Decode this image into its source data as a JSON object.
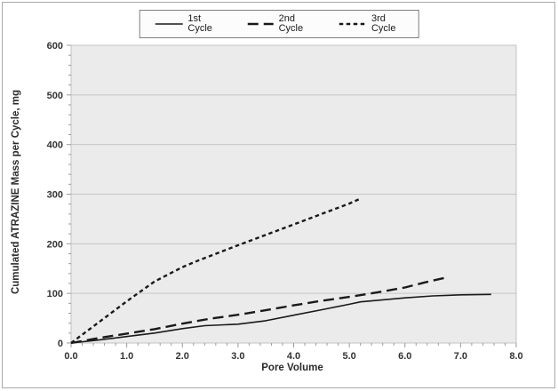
{
  "chart_data": {
    "type": "line",
    "title": "",
    "xlabel": "Pore Volume",
    "ylabel": "Cumulated ATRAZINE Mass per Cycle, mg",
    "xlim": [
      0.0,
      8.0
    ],
    "ylim": [
      0,
      600
    ],
    "x_tick_labels": [
      "0.0",
      "1.0",
      "2.0",
      "3.0",
      "4.0",
      "5.0",
      "6.0",
      "7.0",
      "8.0"
    ],
    "y_tick_labels": [
      "0",
      "100",
      "200",
      "300",
      "400",
      "500",
      "600"
    ],
    "x_major_step": 1.0,
    "x_minor_step": 0.2,
    "y_major_step": 100,
    "y_minor_step": 20,
    "grid": "horizontal-major-only",
    "legend_position": "top-center",
    "colors": {
      "line": "#1a1a1a",
      "plot_background": "#ebebeb",
      "gridline": "#c6c6c6",
      "plot_border": "#c3c3c3",
      "tick": "#9a9a9a",
      "tick_text": "#333333"
    },
    "series": [
      {
        "name": "1st Cycle",
        "style": "solid",
        "points": [
          [
            0,
            0
          ],
          [
            0.5,
            6
          ],
          [
            1.0,
            13
          ],
          [
            1.5,
            20
          ],
          [
            2.0,
            29
          ],
          [
            2.4,
            35
          ],
          [
            3.0,
            38
          ],
          [
            3.5,
            45
          ],
          [
            4.0,
            56
          ],
          [
            4.5,
            67
          ],
          [
            5.0,
            78
          ],
          [
            5.2,
            83
          ],
          [
            5.6,
            87
          ],
          [
            6.0,
            91
          ],
          [
            6.5,
            95
          ],
          [
            7.0,
            97
          ],
          [
            7.55,
            98
          ]
        ]
      },
      {
        "name": "2nd Cycle",
        "style": "long-dash",
        "points": [
          [
            0,
            0
          ],
          [
            0.5,
            10
          ],
          [
            1.0,
            19
          ],
          [
            1.5,
            28
          ],
          [
            2.0,
            39
          ],
          [
            2.5,
            49
          ],
          [
            3.0,
            57
          ],
          [
            3.5,
            66
          ],
          [
            4.0,
            76
          ],
          [
            4.5,
            85
          ],
          [
            5.0,
            93
          ],
          [
            5.5,
            102
          ],
          [
            6.0,
            112
          ],
          [
            6.35,
            122
          ],
          [
            6.7,
            131
          ]
        ]
      },
      {
        "name": "3rd Cycle",
        "style": "short-dash",
        "points": [
          [
            0,
            0
          ],
          [
            0.5,
            42
          ],
          [
            1.0,
            84
          ],
          [
            1.5,
            124
          ],
          [
            2.0,
            153
          ],
          [
            2.3,
            167
          ],
          [
            3.0,
            197
          ],
          [
            3.5,
            218
          ],
          [
            4.0,
            239
          ],
          [
            4.5,
            260
          ],
          [
            5.0,
            281
          ],
          [
            5.2,
            291
          ]
        ]
      }
    ]
  }
}
